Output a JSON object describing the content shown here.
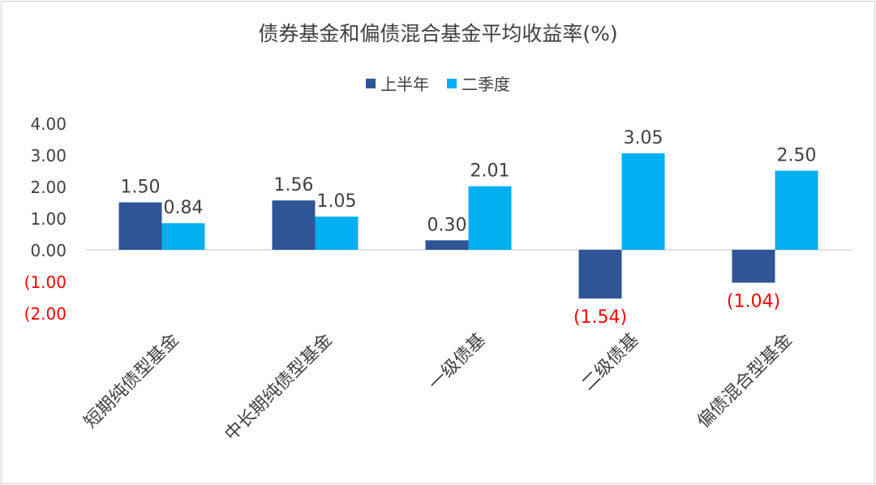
{
  "colors": {
    "series1": "#2F5597",
    "series2": "#00B0F0",
    "negative_label": "#FF0000",
    "text": "#404040",
    "axis": "#D9D9D9"
  },
  "chart_data": {
    "type": "bar",
    "title": "债券基金和偏债混合基金平均收益率(%)",
    "categories": [
      "短期纯债型基金",
      "中长期纯债型基金",
      "一级债基",
      "二级债基",
      "偏债混合型基金"
    ],
    "series": [
      {
        "name": "上半年",
        "values": [
          1.5,
          1.56,
          0.3,
          -1.54,
          -1.04
        ]
      },
      {
        "name": "二季度",
        "values": [
          0.84,
          1.05,
          2.01,
          3.05,
          2.5
        ]
      }
    ],
    "data_labels": [
      [
        "1.50",
        "1.56",
        "0.30",
        "(1.54)",
        "(1.04)"
      ],
      [
        "0.84",
        "1.05",
        "2.01",
        "3.05",
        "2.50"
      ]
    ],
    "y_ticks": [
      4,
      3,
      2,
      1,
      0,
      -1,
      -2
    ],
    "y_tick_labels": [
      "4.00",
      "3.00",
      "2.00",
      "1.00",
      "0.00",
      "(1.00",
      "(2.00"
    ],
    "ylim": [
      -2,
      4
    ],
    "legend_position": "top"
  }
}
